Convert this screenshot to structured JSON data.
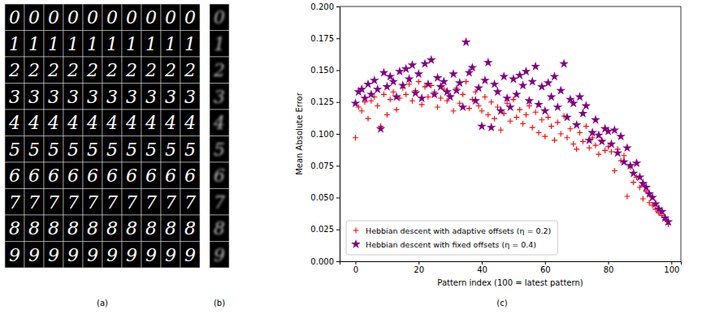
{
  "panel_labels": [
    "(a)",
    "(b)",
    "(c)"
  ],
  "panel_a": {
    "rows": [
      [
        "0",
        "0",
        "0",
        "0",
        "0",
        "0",
        "0",
        "0",
        "0",
        "0"
      ],
      [
        "1",
        "1",
        "1",
        "1",
        "1",
        "1",
        "1",
        "1",
        "1",
        "1"
      ],
      [
        "2",
        "2",
        "2",
        "2",
        "2",
        "2",
        "2",
        "2",
        "2",
        "2"
      ],
      [
        "3",
        "3",
        "3",
        "3",
        "3",
        "3",
        "3",
        "3",
        "3",
        "3"
      ],
      [
        "4",
        "4",
        "4",
        "4",
        "4",
        "4",
        "4",
        "4",
        "4",
        "4"
      ],
      [
        "5",
        "5",
        "5",
        "5",
        "5",
        "5",
        "5",
        "5",
        "5",
        "5"
      ],
      [
        "6",
        "6",
        "6",
        "6",
        "6",
        "6",
        "6",
        "6",
        "6",
        "6"
      ],
      [
        "7",
        "7",
        "7",
        "7",
        "7",
        "7",
        "7",
        "7",
        "7",
        "7"
      ],
      [
        "8",
        "8",
        "8",
        "8",
        "8",
        "8",
        "8",
        "8",
        "8",
        "8"
      ],
      [
        "9",
        "9",
        "9",
        "9",
        "9",
        "9",
        "9",
        "9",
        "9",
        "9"
      ]
    ]
  },
  "panel_b": {
    "digits": [
      "0",
      "1",
      "2",
      "3",
      "4",
      "5",
      "6",
      "7",
      "8",
      "9"
    ]
  },
  "chart_data": {
    "type": "scatter",
    "x_label": "Pattern index (100 = latest pattern)",
    "y_label": "Mean Absolute Error",
    "xlim": [
      -5,
      103
    ],
    "ylim": [
      0,
      0.2
    ],
    "xticks": [
      0,
      20,
      40,
      60,
      80,
      100
    ],
    "yticks": [
      {
        "value": 0,
        "label": "0.000"
      },
      {
        "value": 0.025,
        "label": "0.025"
      },
      {
        "value": 0.05,
        "label": "0.050"
      },
      {
        "value": 0.075,
        "label": "0.075"
      },
      {
        "value": 0.1,
        "label": "0.100"
      },
      {
        "value": 0.125,
        "label": "0.125"
      },
      {
        "value": 0.15,
        "label": "0.150"
      },
      {
        "value": 0.175,
        "label": "0.175"
      },
      {
        "value": 0.2,
        "label": "0.200"
      }
    ],
    "grid": false,
    "legend": "lower left",
    "x": [
      0,
      1,
      2,
      3,
      4,
      5,
      6,
      7,
      8,
      9,
      10,
      11,
      12,
      13,
      14,
      15,
      16,
      17,
      18,
      19,
      20,
      21,
      22,
      23,
      24,
      25,
      26,
      27,
      28,
      29,
      30,
      31,
      32,
      33,
      34,
      35,
      36,
      37,
      38,
      39,
      40,
      41,
      42,
      43,
      44,
      45,
      46,
      47,
      48,
      49,
      50,
      51,
      52,
      53,
      54,
      55,
      56,
      57,
      58,
      59,
      60,
      61,
      62,
      63,
      64,
      65,
      66,
      67,
      68,
      69,
      70,
      71,
      72,
      73,
      74,
      75,
      76,
      77,
      78,
      79,
      80,
      81,
      82,
      83,
      84,
      85,
      86,
      87,
      88,
      89,
      90,
      91,
      92,
      93,
      94,
      95,
      96,
      97,
      98,
      99
    ],
    "series": [
      {
        "name": "Hebbian descent with adaptive offsets  (η = 0.2)",
        "color": "#ff0000",
        "marker": "plus",
        "values": [
          0.097,
          0.121,
          0.118,
          0.125,
          0.112,
          0.126,
          0.129,
          0.122,
          0.106,
          0.131,
          0.115,
          0.127,
          0.133,
          0.119,
          0.128,
          0.136,
          0.131,
          0.139,
          0.126,
          0.134,
          0.141,
          0.123,
          0.137,
          0.129,
          0.138,
          0.133,
          0.121,
          0.128,
          0.135,
          0.126,
          0.13,
          0.118,
          0.136,
          0.124,
          0.131,
          0.141,
          0.12,
          0.127,
          0.133,
          0.122,
          0.118,
          0.129,
          0.115,
          0.125,
          0.112,
          0.121,
          0.103,
          0.116,
          0.124,
          0.11,
          0.127,
          0.113,
          0.119,
          0.108,
          0.115,
          0.122,
          0.105,
          0.117,
          0.101,
          0.111,
          0.098,
          0.113,
          0.106,
          0.095,
          0.109,
          0.1,
          0.114,
          0.097,
          0.104,
          0.092,
          0.088,
          0.101,
          0.094,
          0.106,
          0.089,
          0.097,
          0.091,
          0.084,
          0.095,
          0.087,
          0.09,
          0.086,
          0.071,
          0.088,
          0.079,
          0.083,
          0.051,
          0.074,
          0.062,
          0.066,
          0.058,
          0.049,
          0.055,
          0.046,
          0.044,
          0.041,
          0.038,
          0.036,
          0.033,
          0.029
        ]
      },
      {
        "name": "Hebbian descent with fixed offsets  (η = 0.4)",
        "color": "#800080",
        "marker": "star",
        "values": [
          0.124,
          0.133,
          0.135,
          0.128,
          0.139,
          0.131,
          0.142,
          0.135,
          0.104,
          0.148,
          0.137,
          0.145,
          0.141,
          0.129,
          0.149,
          0.138,
          0.151,
          0.143,
          0.154,
          0.132,
          0.147,
          0.128,
          0.155,
          0.139,
          0.158,
          0.131,
          0.144,
          0.137,
          0.141,
          0.133,
          0.129,
          0.147,
          0.134,
          0.14,
          0.121,
          0.172,
          0.148,
          0.152,
          0.126,
          0.136,
          0.106,
          0.142,
          0.156,
          0.105,
          0.139,
          0.133,
          0.118,
          0.145,
          0.128,
          0.121,
          0.143,
          0.131,
          0.146,
          0.138,
          0.149,
          0.126,
          0.141,
          0.153,
          0.123,
          0.137,
          0.118,
          0.14,
          0.129,
          0.145,
          0.121,
          0.134,
          0.155,
          0.113,
          0.127,
          0.124,
          0.107,
          0.129,
          0.116,
          0.122,
          0.095,
          0.101,
          0.111,
          0.099,
          0.094,
          0.104,
          0.102,
          0.092,
          0.103,
          0.085,
          0.098,
          0.078,
          0.089,
          0.075,
          0.069,
          0.077,
          0.066,
          0.061,
          0.058,
          0.053,
          0.05,
          0.045,
          0.041,
          0.039,
          0.034,
          0.031
        ]
      }
    ]
  }
}
